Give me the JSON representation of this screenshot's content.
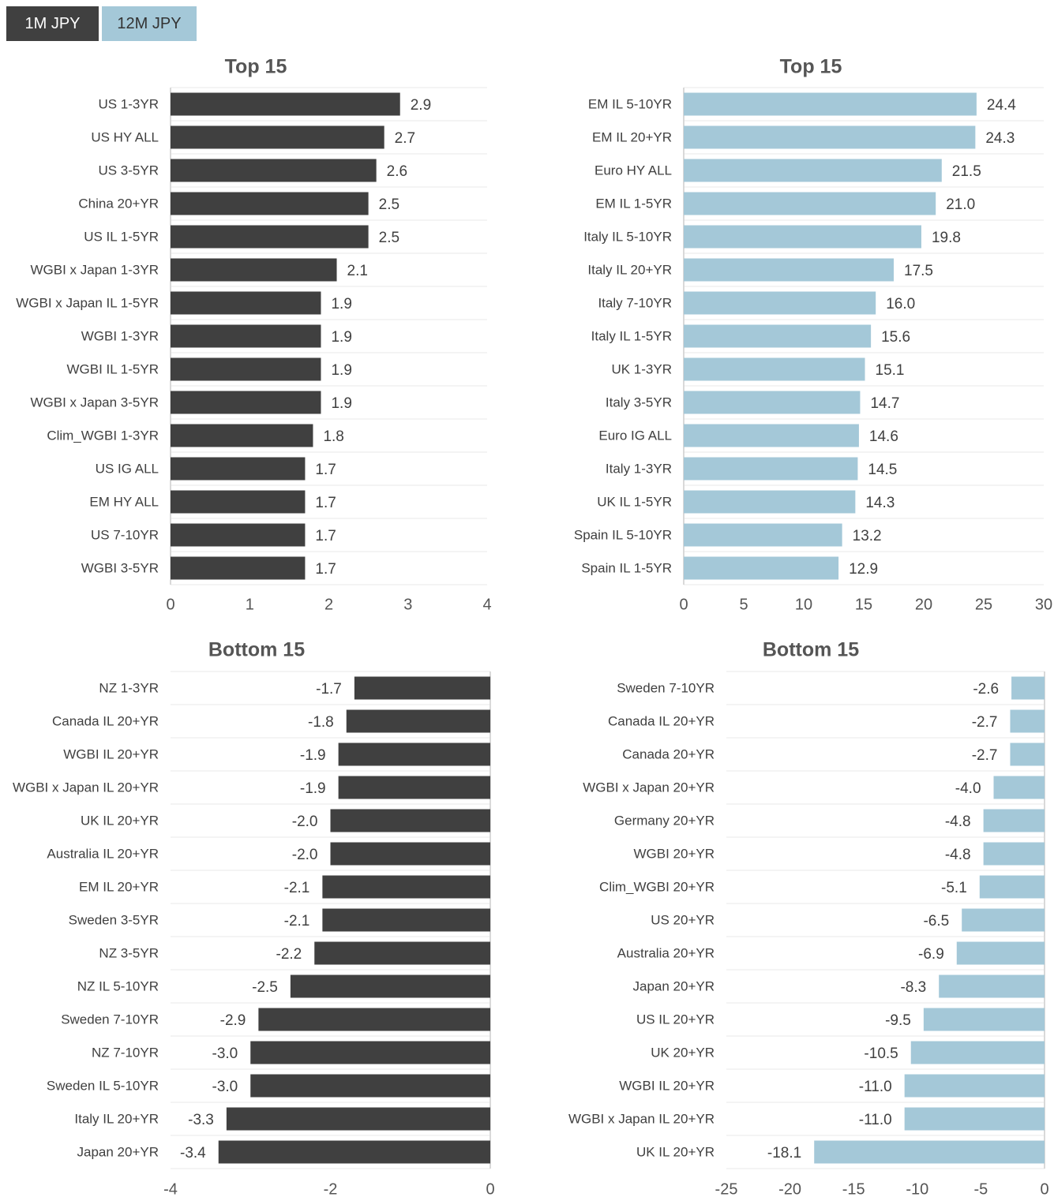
{
  "legend": {
    "items": [
      {
        "label": "1M JPY",
        "color": "#404040"
      },
      {
        "label": "12M JPY",
        "color": "#a4c8d8"
      }
    ]
  },
  "chart_data": [
    {
      "type": "bar",
      "orientation": "horizontal",
      "title": "Top 15",
      "series_name": "1M JPY",
      "color": "#404040",
      "categories": [
        "US 1-3YR",
        "US HY ALL",
        "US 3-5YR",
        "China 20+YR",
        "US IL 1-5YR",
        "WGBI x Japan 1-3YR",
        "WGBI x Japan IL 1-5YR",
        "WGBI 1-3YR",
        "WGBI IL 1-5YR",
        "WGBI x Japan 3-5YR",
        "Clim_WGBI 1-3YR",
        "US IG ALL",
        "EM HY ALL",
        "US 7-10YR",
        "WGBI 3-5YR"
      ],
      "values": [
        2.9,
        2.7,
        2.6,
        2.5,
        2.5,
        2.1,
        1.9,
        1.9,
        1.9,
        1.9,
        1.8,
        1.7,
        1.7,
        1.7,
        1.7
      ],
      "value_labels": [
        "2.9",
        "2.7",
        "2.6",
        "2.5",
        "2.5",
        "2.1",
        "1.9",
        "1.9",
        "1.9",
        "1.9",
        "1.8",
        "1.7",
        "1.7",
        "1.7",
        "1.7"
      ],
      "xlim": [
        0,
        4
      ],
      "ticks": [
        0,
        1,
        2,
        3,
        4
      ],
      "tick_labels": [
        "0",
        "1",
        "2",
        "3",
        "4"
      ],
      "grid": true
    },
    {
      "type": "bar",
      "orientation": "horizontal",
      "title": "Top 15",
      "series_name": "12M JPY",
      "color": "#a4c8d8",
      "categories": [
        "EM IL 5-10YR",
        "EM IL 20+YR",
        "Euro HY ALL",
        "EM IL 1-5YR",
        "Italy IL 5-10YR",
        "Italy IL 20+YR",
        "Italy 7-10YR",
        "Italy IL 1-5YR",
        "UK 1-3YR",
        "Italy 3-5YR",
        "Euro IG ALL",
        "Italy 1-3YR",
        "UK IL 1-5YR",
        "Spain IL 5-10YR",
        "Spain IL 1-5YR"
      ],
      "values": [
        24.4,
        24.3,
        21.5,
        21.0,
        19.8,
        17.5,
        16.0,
        15.6,
        15.1,
        14.7,
        14.6,
        14.5,
        14.3,
        13.2,
        12.9
      ],
      "value_labels": [
        "24.4",
        "24.3",
        "21.5",
        "21.0",
        "19.8",
        "17.5",
        "16.0",
        "15.6",
        "15.1",
        "14.7",
        "14.6",
        "14.5",
        "14.3",
        "13.2",
        "12.9"
      ],
      "xlim": [
        0,
        30
      ],
      "ticks": [
        0,
        5,
        10,
        15,
        20,
        25,
        30
      ],
      "tick_labels": [
        "0",
        "5",
        "10",
        "15",
        "20",
        "25",
        "30"
      ],
      "grid": true
    },
    {
      "type": "bar",
      "orientation": "horizontal",
      "title": "Bottom 15",
      "series_name": "1M JPY",
      "color": "#404040",
      "categories": [
        "NZ 1-3YR",
        "Canada IL 20+YR",
        "WGBI IL 20+YR",
        "WGBI x Japan IL 20+YR",
        "UK IL 20+YR",
        "Australia IL 20+YR",
        "EM IL 20+YR",
        "Sweden 3-5YR",
        "NZ 3-5YR",
        "NZ IL 5-10YR",
        "Sweden 7-10YR",
        "NZ 7-10YR",
        "Sweden IL 5-10YR",
        "Italy IL 20+YR",
        "Japan 20+YR"
      ],
      "values": [
        -1.7,
        -1.8,
        -1.9,
        -1.9,
        -2.0,
        -2.0,
        -2.1,
        -2.1,
        -2.2,
        -2.5,
        -2.9,
        -3.0,
        -3.0,
        -3.3,
        -3.4
      ],
      "value_labels": [
        "-1.7",
        "-1.8",
        "-1.9",
        "-1.9",
        "-2.0",
        "-2.0",
        "-2.1",
        "-2.1",
        "-2.2",
        "-2.5",
        "-2.9",
        "-3.0",
        "-3.0",
        "-3.3",
        "-3.4"
      ],
      "xlim": [
        -4,
        0
      ],
      "ticks": [
        -4,
        -2,
        0
      ],
      "tick_labels": [
        "-4",
        "-2",
        "0"
      ],
      "grid": true
    },
    {
      "type": "bar",
      "orientation": "horizontal",
      "title": "Bottom 15",
      "series_name": "12M JPY",
      "color": "#a4c8d8",
      "categories": [
        "Sweden 7-10YR",
        "Canada IL 20+YR",
        "Canada 20+YR",
        "WGBI x Japan 20+YR",
        "Germany 20+YR",
        "WGBI 20+YR",
        "Clim_WGBI 20+YR",
        "US 20+YR",
        "Australia 20+YR",
        "Japan 20+YR",
        "US IL 20+YR",
        "UK 20+YR",
        "WGBI IL 20+YR",
        "WGBI x Japan IL 20+YR",
        "UK IL 20+YR"
      ],
      "values": [
        -2.6,
        -2.7,
        -2.7,
        -4.0,
        -4.8,
        -4.8,
        -5.1,
        -6.5,
        -6.9,
        -8.3,
        -9.5,
        -10.5,
        -11.0,
        -11.0,
        -18.1
      ],
      "value_labels": [
        "-2.6",
        "-2.7",
        "-2.7",
        "-4.0",
        "-4.8",
        "-4.8",
        "-5.1",
        "-6.5",
        "-6.9",
        "-8.3",
        "-9.5",
        "-10.5",
        "-11.0",
        "-11.0",
        "-18.1"
      ],
      "xlim": [
        -25,
        0
      ],
      "ticks": [
        -25,
        -20,
        -15,
        -10,
        -5,
        0
      ],
      "tick_labels": [
        "-25",
        "-20",
        "-15",
        "-10",
        "-5",
        "0"
      ],
      "grid": true
    }
  ]
}
